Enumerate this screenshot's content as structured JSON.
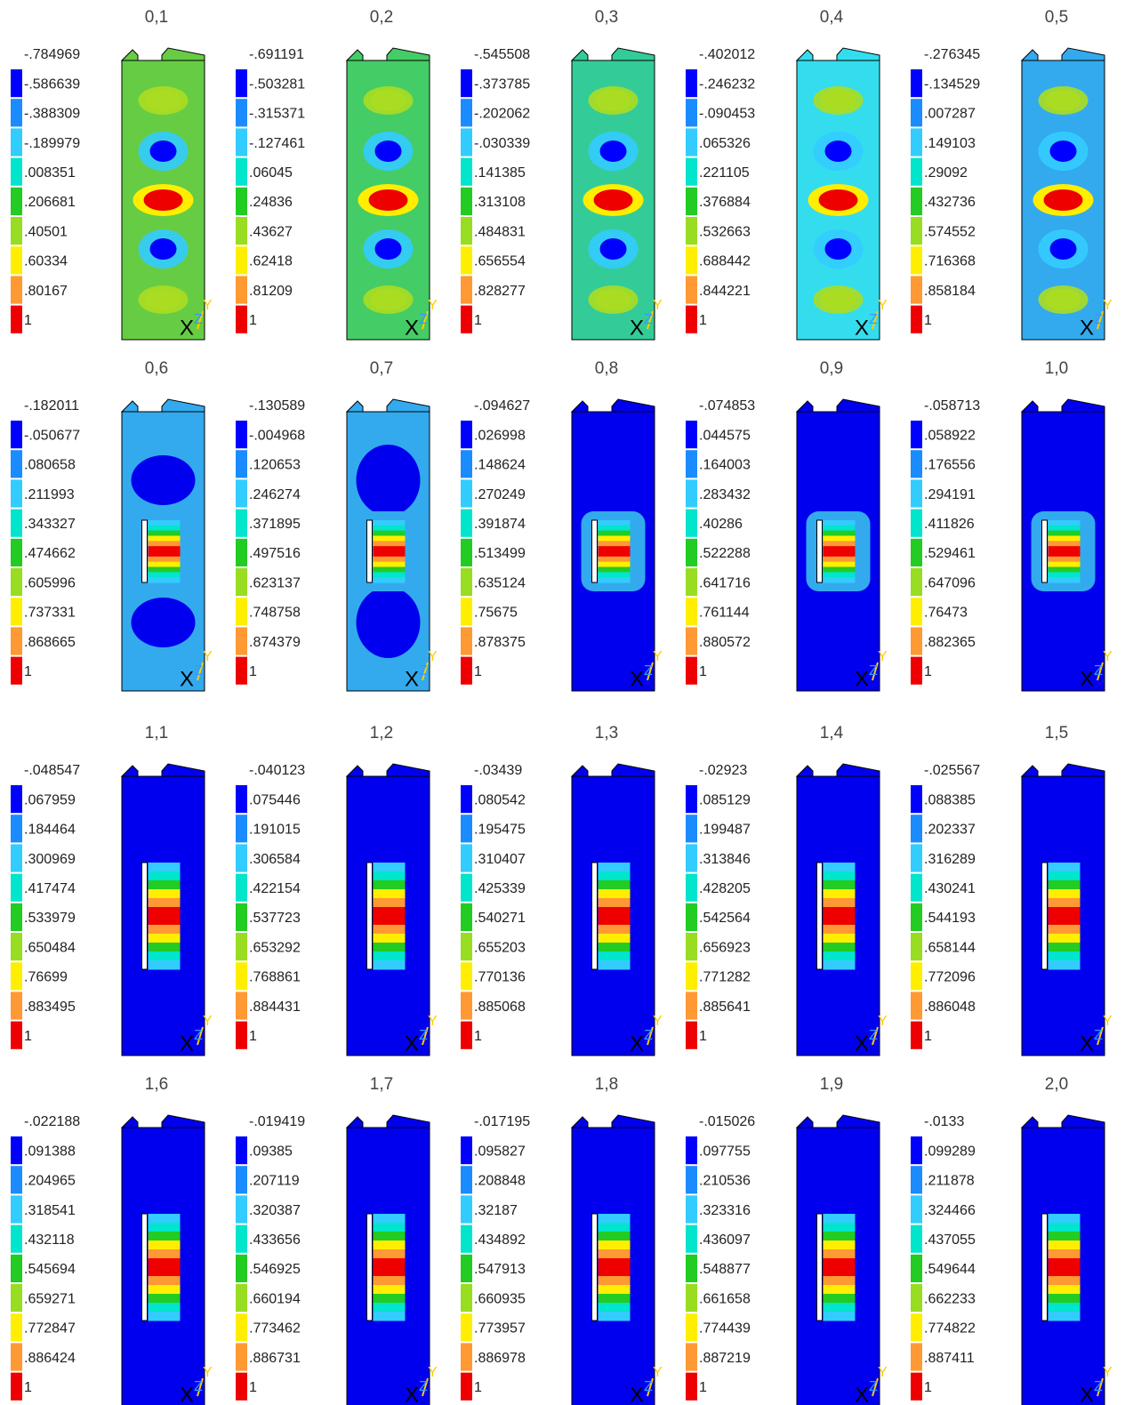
{
  "axis_labels": [
    "X",
    "Y",
    "Z"
  ],
  "panels": [
    {
      "label": "0,1",
      "legend": [
        "-.784969",
        "-.586639",
        "-.388309",
        "-.189979",
        ".008351",
        ".206681",
        ".40501",
        ".60334",
        ".80167",
        "1"
      ]
    },
    {
      "label": "0,2",
      "legend": [
        "-.691191",
        "-.503281",
        "-.315371",
        "-.127461",
        ".06045",
        ".24836",
        ".43627",
        ".62418",
        ".81209",
        "1"
      ]
    },
    {
      "label": "0,3",
      "legend": [
        "-.545508",
        "-.373785",
        "-.202062",
        "-.030339",
        ".141385",
        ".313108",
        ".484831",
        ".656554",
        ".828277",
        "1"
      ]
    },
    {
      "label": "0,4",
      "legend": [
        "-.402012",
        "-.246232",
        "-.090453",
        ".065326",
        ".221105",
        ".376884",
        ".532663",
        ".688442",
        ".844221",
        "1"
      ]
    },
    {
      "label": "0,5",
      "legend": [
        "-.276345",
        "-.134529",
        ".007287",
        ".149103",
        ".29092",
        ".432736",
        ".574552",
        ".716368",
        ".858184",
        "1"
      ]
    },
    {
      "label": "0,6",
      "legend": [
        "-.182011",
        "-.050677",
        ".080658",
        ".211993",
        ".343327",
        ".474662",
        ".605996",
        ".737331",
        ".868665",
        "1"
      ]
    },
    {
      "label": "0,7",
      "legend": [
        "-.130589",
        "-.004968",
        ".120653",
        ".246274",
        ".371895",
        ".497516",
        ".623137",
        ".748758",
        ".874379",
        "1"
      ]
    },
    {
      "label": "0,8",
      "legend": [
        "-.094627",
        ".026998",
        ".148624",
        ".270249",
        ".391874",
        ".513499",
        ".635124",
        ".75675",
        ".878375",
        "1"
      ]
    },
    {
      "label": "0,9",
      "legend": [
        "-.074853",
        ".044575",
        ".164003",
        ".283432",
        ".40286",
        ".522288",
        ".641716",
        ".761144",
        ".880572",
        "1"
      ]
    },
    {
      "label": "1,0",
      "legend": [
        "-.058713",
        ".058922",
        ".176556",
        ".294191",
        ".411826",
        ".529461",
        ".647096",
        ".76473",
        ".882365",
        "1"
      ]
    },
    {
      "label": "1,1",
      "legend": [
        "-.048547",
        ".067959",
        ".184464",
        ".300969",
        ".417474",
        ".533979",
        ".650484",
        ".76699",
        ".883495",
        "1"
      ]
    },
    {
      "label": "1,2",
      "legend": [
        "-.040123",
        ".075446",
        ".191015",
        ".306584",
        ".422154",
        ".537723",
        ".653292",
        ".768861",
        ".884431",
        "1"
      ]
    },
    {
      "label": "1,3",
      "legend": [
        "-.03439",
        ".080542",
        ".195475",
        ".310407",
        ".425339",
        ".540271",
        ".655203",
        ".770136",
        ".885068",
        "1"
      ]
    },
    {
      "label": "1,4",
      "legend": [
        "-.02923",
        ".085129",
        ".199487",
        ".313846",
        ".428205",
        ".542564",
        ".656923",
        ".771282",
        ".885641",
        "1"
      ]
    },
    {
      "label": "1,5",
      "legend": [
        "-.025567",
        ".088385",
        ".202337",
        ".316289",
        ".430241",
        ".544193",
        ".658144",
        ".772096",
        ".886048",
        "1"
      ]
    },
    {
      "label": "1,6",
      "legend": [
        "-.022188",
        ".091388",
        ".204965",
        ".318541",
        ".432118",
        ".545694",
        ".659271",
        ".772847",
        ".886424",
        "1"
      ]
    },
    {
      "label": "1,7",
      "legend": [
        "-.019419",
        ".09385",
        ".207119",
        ".320387",
        ".433656",
        ".546925",
        ".660194",
        ".773462",
        ".886731",
        "1"
      ]
    },
    {
      "label": "1,8",
      "legend": [
        "-.017195",
        ".095827",
        ".208848",
        ".32187",
        ".434892",
        ".547913",
        ".660935",
        ".773957",
        ".886978",
        "1"
      ]
    },
    {
      "label": "1,9",
      "legend": [
        "-.015026",
        ".097755",
        ".210536",
        ".323316",
        ".436097",
        ".548877",
        ".661658",
        ".774439",
        ".887219",
        "1"
      ]
    },
    {
      "label": "2,0",
      "legend": [
        "-.0133",
        ".099289",
        ".211878",
        ".324466",
        ".437055",
        ".549644",
        ".662233",
        ".774822",
        ".887411",
        "1"
      ]
    }
  ]
}
